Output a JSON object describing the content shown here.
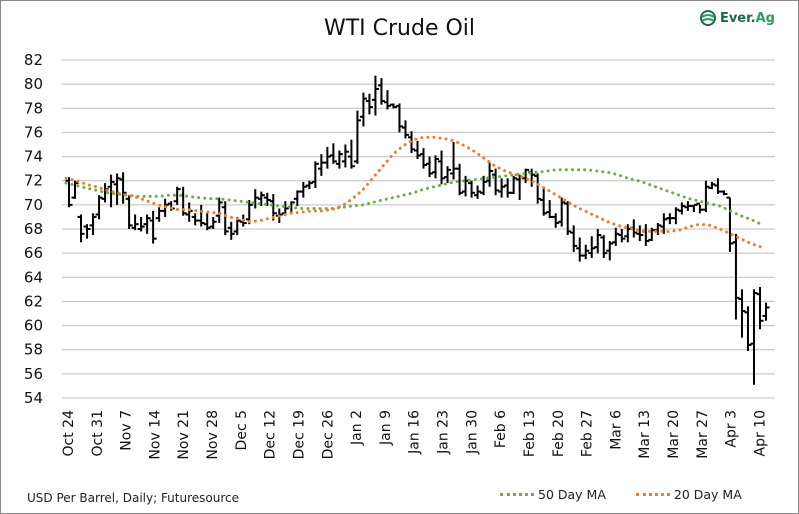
{
  "header": {
    "title": "WTI Crude Oil",
    "logo_text_a": "Ever.",
    "logo_text_b": "Ag"
  },
  "footer": {
    "source_note": "USD Per Barrel, Daily; Futuresource"
  },
  "legend": {
    "items": [
      {
        "label": "50 Day MA",
        "color": "#70ad47"
      },
      {
        "label": "20 Day MA",
        "color": "#ed7d31"
      }
    ]
  },
  "chart_data": {
    "type": "ohlc-line",
    "title": "WTI Crude Oil",
    "xlabel": "",
    "ylabel": "USD Per Barrel",
    "ylim": [
      54,
      82
    ],
    "yticks": [
      54,
      56,
      58,
      60,
      62,
      64,
      66,
      68,
      70,
      72,
      74,
      76,
      78,
      80,
      82
    ],
    "xtick_labels": [
      "Oct 24",
      "Oct 31",
      "Nov 7",
      "Nov 14",
      "Nov 21",
      "Nov 28",
      "Dec 5",
      "Dec 12",
      "Dec 19",
      "Dec 26",
      "Jan 2",
      "Jan 9",
      "Jan 16",
      "Jan 23",
      "Jan 30",
      "Feb 6",
      "Feb 13",
      "Feb 20",
      "Feb 27",
      "Mar 6",
      "Mar 13",
      "Mar 20",
      "Mar 27",
      "Apr 3",
      "Apr 10"
    ],
    "grid": true,
    "legend_position": "bottom-right",
    "colors": {
      "bars": "#000000",
      "ma50": "#70ad47",
      "ma20": "#ed7d31",
      "grid": "#bfbfbf"
    },
    "ohlc": [
      [
        72.0,
        72.3,
        69.8,
        70.0
      ],
      [
        70.6,
        72.0,
        70.5,
        71.8
      ],
      [
        69.0,
        69.2,
        66.9,
        67.6
      ],
      [
        68.2,
        68.4,
        67.2,
        68.0
      ],
      [
        68.3,
        69.3,
        67.5,
        69.0
      ],
      [
        69.2,
        70.8,
        68.8,
        70.6
      ],
      [
        70.5,
        71.8,
        70.2,
        71.3
      ],
      [
        71.5,
        72.5,
        69.8,
        71.9
      ],
      [
        71.7,
        72.6,
        70.0,
        72.2
      ],
      [
        72.1,
        72.7,
        70.1,
        71.0
      ],
      [
        70.5,
        70.8,
        68.0,
        68.3
      ],
      [
        68.1,
        69.2,
        67.9,
        68.4
      ],
      [
        68.0,
        69.0,
        67.8,
        68.2
      ],
      [
        68.4,
        69.2,
        67.6,
        68.9
      ],
      [
        68.7,
        69.5,
        66.8,
        67.2
      ],
      [
        68.9,
        69.8,
        68.6,
        69.5
      ],
      [
        69.5,
        70.5,
        69.0,
        70.0
      ],
      [
        70.1,
        70.3,
        69.5,
        69.7
      ],
      [
        70.3,
        71.5,
        70.0,
        71.3
      ],
      [
        70.8,
        71.5,
        69.1,
        69.3
      ],
      [
        69.2,
        70.2,
        68.6,
        69.5
      ],
      [
        69.0,
        69.3,
        68.3,
        68.7
      ],
      [
        68.7,
        70.0,
        68.2,
        68.5
      ],
      [
        68.4,
        69.3,
        67.9,
        68.1
      ],
      [
        68.2,
        69.0,
        68.0,
        68.6
      ],
      [
        69.1,
        70.6,
        68.5,
        70.2
      ],
      [
        69.8,
        70.3,
        67.5,
        67.8
      ],
      [
        68.1,
        68.6,
        67.1,
        67.6
      ],
      [
        67.8,
        69.0,
        67.5,
        68.7
      ],
      [
        68.6,
        69.2,
        68.2,
        68.5
      ],
      [
        68.8,
        70.4,
        68.4,
        70.0
      ],
      [
        70.2,
        71.3,
        69.7,
        70.6
      ],
      [
        70.5,
        71.1,
        69.9,
        70.8
      ],
      [
        70.6,
        71.0,
        69.9,
        70.4
      ],
      [
        70.3,
        70.9,
        68.7,
        69.3
      ],
      [
        69.1,
        69.7,
        68.5,
        69.2
      ],
      [
        69.3,
        70.3,
        69.1,
        69.7
      ],
      [
        69.8,
        70.3,
        69.3,
        70.2
      ],
      [
        70.5,
        71.2,
        69.9,
        71.1
      ],
      [
        71.1,
        71.9,
        70.6,
        71.5
      ],
      [
        71.6,
        72.0,
        71.3,
        71.8
      ],
      [
        71.9,
        73.6,
        71.4,
        73.4
      ],
      [
        73.0,
        74.2,
        72.4,
        73.5
      ],
      [
        73.5,
        74.8,
        73.0,
        74.0
      ],
      [
        74.1,
        75.1,
        73.4,
        73.6
      ],
      [
        73.4,
        74.5,
        73.0,
        74.2
      ],
      [
        73.6,
        75.0,
        73.1,
        74.4
      ],
      [
        74.0,
        75.4,
        73.0,
        73.2
      ],
      [
        73.6,
        77.8,
        73.4,
        77.0
      ],
      [
        77.3,
        79.3,
        76.5,
        78.8
      ],
      [
        78.6,
        79.2,
        77.5,
        78.1
      ],
      [
        78.7,
        80.7,
        77.4,
        79.6
      ],
      [
        79.9,
        80.5,
        78.3,
        78.6
      ],
      [
        78.5,
        79.5,
        77.9,
        78.2
      ],
      [
        78.3,
        78.4,
        78.0,
        78.1
      ],
      [
        78.2,
        78.4,
        76.0,
        76.5
      ],
      [
        76.4,
        77.0,
        75.5,
        75.8
      ],
      [
        75.6,
        76.1,
        74.3,
        74.6
      ],
      [
        74.5,
        75.3,
        73.8,
        74.1
      ],
      [
        74.2,
        74.7,
        73.0,
        73.3
      ],
      [
        73.4,
        74.0,
        72.3,
        72.6
      ],
      [
        72.7,
        74.1,
        72.2,
        73.8
      ],
      [
        73.6,
        74.5,
        71.7,
        72.2
      ],
      [
        72.3,
        73.2,
        71.8,
        72.9
      ],
      [
        72.6,
        75.2,
        72.1,
        73.0
      ],
      [
        73.0,
        73.4,
        70.8,
        71.0
      ],
      [
        71.1,
        72.4,
        70.7,
        72.0
      ],
      [
        71.8,
        72.0,
        70.6,
        71.0
      ],
      [
        70.8,
        71.6,
        70.5,
        71.1
      ],
      [
        71.0,
        72.4,
        70.8,
        71.9
      ],
      [
        72.0,
        73.5,
        71.5,
        72.8
      ],
      [
        72.5,
        73.0,
        70.8,
        71.2
      ],
      [
        71.1,
        72.2,
        70.6,
        71.5
      ],
      [
        71.6,
        72.2,
        70.6,
        71.0
      ],
      [
        71.0,
        72.4,
        70.9,
        72.2
      ],
      [
        72.1,
        72.5,
        70.4,
        72.3
      ],
      [
        72.2,
        73.0,
        71.8,
        72.9
      ],
      [
        72.7,
        73.0,
        71.5,
        72.5
      ],
      [
        72.4,
        72.6,
        70.1,
        70.5
      ],
      [
        70.4,
        71.4,
        69.1,
        69.3
      ],
      [
        69.4,
        70.4,
        68.9,
        69.0
      ],
      [
        69.0,
        69.3,
        68.1,
        68.5
      ],
      [
        68.6,
        70.6,
        68.2,
        70.2
      ],
      [
        70.1,
        70.3,
        67.5,
        67.8
      ],
      [
        67.7,
        68.3,
        66.1,
        66.6
      ],
      [
        66.4,
        67.3,
        65.3,
        65.8
      ],
      [
        65.8,
        66.7,
        65.5,
        66.2
      ],
      [
        66.0,
        67.4,
        65.6,
        66.4
      ],
      [
        66.5,
        68.0,
        66.0,
        67.5
      ],
      [
        67.3,
        67.5,
        65.6,
        66.0
      ],
      [
        66.2,
        67.0,
        65.4,
        66.8
      ],
      [
        66.9,
        68.1,
        66.6,
        67.6
      ],
      [
        67.5,
        68.0,
        66.9,
        67.2
      ],
      [
        67.4,
        68.4,
        66.9,
        68.0
      ],
      [
        68.1,
        68.8,
        67.3,
        67.7
      ],
      [
        67.6,
        68.3,
        67.0,
        67.5
      ],
      [
        67.8,
        68.4,
        66.6,
        67.0
      ],
      [
        67.1,
        68.1,
        67.0,
        67.9
      ],
      [
        67.9,
        68.5,
        67.5,
        68.3
      ],
      [
        68.2,
        69.3,
        67.6,
        68.8
      ],
      [
        68.9,
        69.3,
        68.4,
        68.9
      ],
      [
        68.9,
        69.8,
        68.4,
        69.6
      ],
      [
        69.5,
        70.2,
        69.2,
        69.9
      ],
      [
        69.8,
        70.3,
        69.5,
        69.9
      ],
      [
        69.9,
        70.0,
        69.4,
        70.0
      ],
      [
        70.1,
        70.0,
        69.3,
        69.6
      ],
      [
        69.6,
        72.0,
        69.4,
        71.5
      ],
      [
        71.4,
        71.9,
        71.3,
        71.7
      ],
      [
        71.6,
        72.2,
        70.9,
        71.1
      ],
      [
        71.1,
        71.2,
        70.8,
        70.9
      ],
      [
        70.6,
        70.6,
        66.1,
        66.8
      ],
      [
        66.9,
        67.6,
        60.5,
        62.3
      ],
      [
        62.2,
        63.0,
        59.0,
        61.2
      ],
      [
        61.1,
        61.6,
        57.9,
        58.4
      ],
      [
        58.5,
        63.0,
        55.1,
        62.7
      ],
      [
        62.6,
        63.2,
        59.7,
        60.4
      ],
      [
        60.8,
        61.9,
        60.4,
        61.5
      ]
    ],
    "ma50": [
      71.8,
      71.6,
      71.4,
      71.2,
      71.0,
      70.9,
      70.8,
      70.7,
      70.7,
      70.7,
      70.8,
      70.8,
      70.7,
      70.6,
      70.5,
      70.5,
      70.4,
      70.3,
      70.2,
      70.1,
      70.0,
      69.9,
      69.8,
      69.7,
      69.7,
      69.7,
      69.7,
      69.8,
      69.9,
      70.0,
      70.2,
      70.4,
      70.6,
      70.8,
      71.0,
      71.3,
      71.5,
      71.7,
      71.9,
      72.0,
      72.1,
      72.2,
      72.3,
      72.4,
      72.5,
      72.6,
      72.7,
      72.8,
      72.9,
      72.9,
      72.9,
      72.9,
      72.8,
      72.7,
      72.5,
      72.2,
      72.0,
      71.7,
      71.4,
      71.1,
      70.8,
      70.5,
      70.3,
      70.1,
      69.9,
      69.5,
      69.1,
      68.8,
      68.4
    ],
    "ma20": [
      72.2,
      72.0,
      71.7,
      71.5,
      71.2,
      71.0,
      70.8,
      70.6,
      70.3,
      70.0,
      69.8,
      69.6,
      69.6,
      69.5,
      69.4,
      69.3,
      69.0,
      68.8,
      68.6,
      68.7,
      68.9,
      69.1,
      69.3,
      69.4,
      69.5,
      69.5,
      69.6,
      69.9,
      70.5,
      71.2,
      72.2,
      73.2,
      74.2,
      74.9,
      75.4,
      75.6,
      75.6,
      75.5,
      75.3,
      74.9,
      74.4,
      73.8,
      73.2,
      72.8,
      72.5,
      72.2,
      71.8,
      71.3,
      70.8,
      70.3,
      69.8,
      69.4,
      69.0,
      68.6,
      68.3,
      68.1,
      67.9,
      67.8,
      67.8,
      67.8,
      67.9,
      68.2,
      68.4,
      68.3,
      68.0,
      67.6,
      67.2,
      66.8,
      66.5
    ]
  }
}
